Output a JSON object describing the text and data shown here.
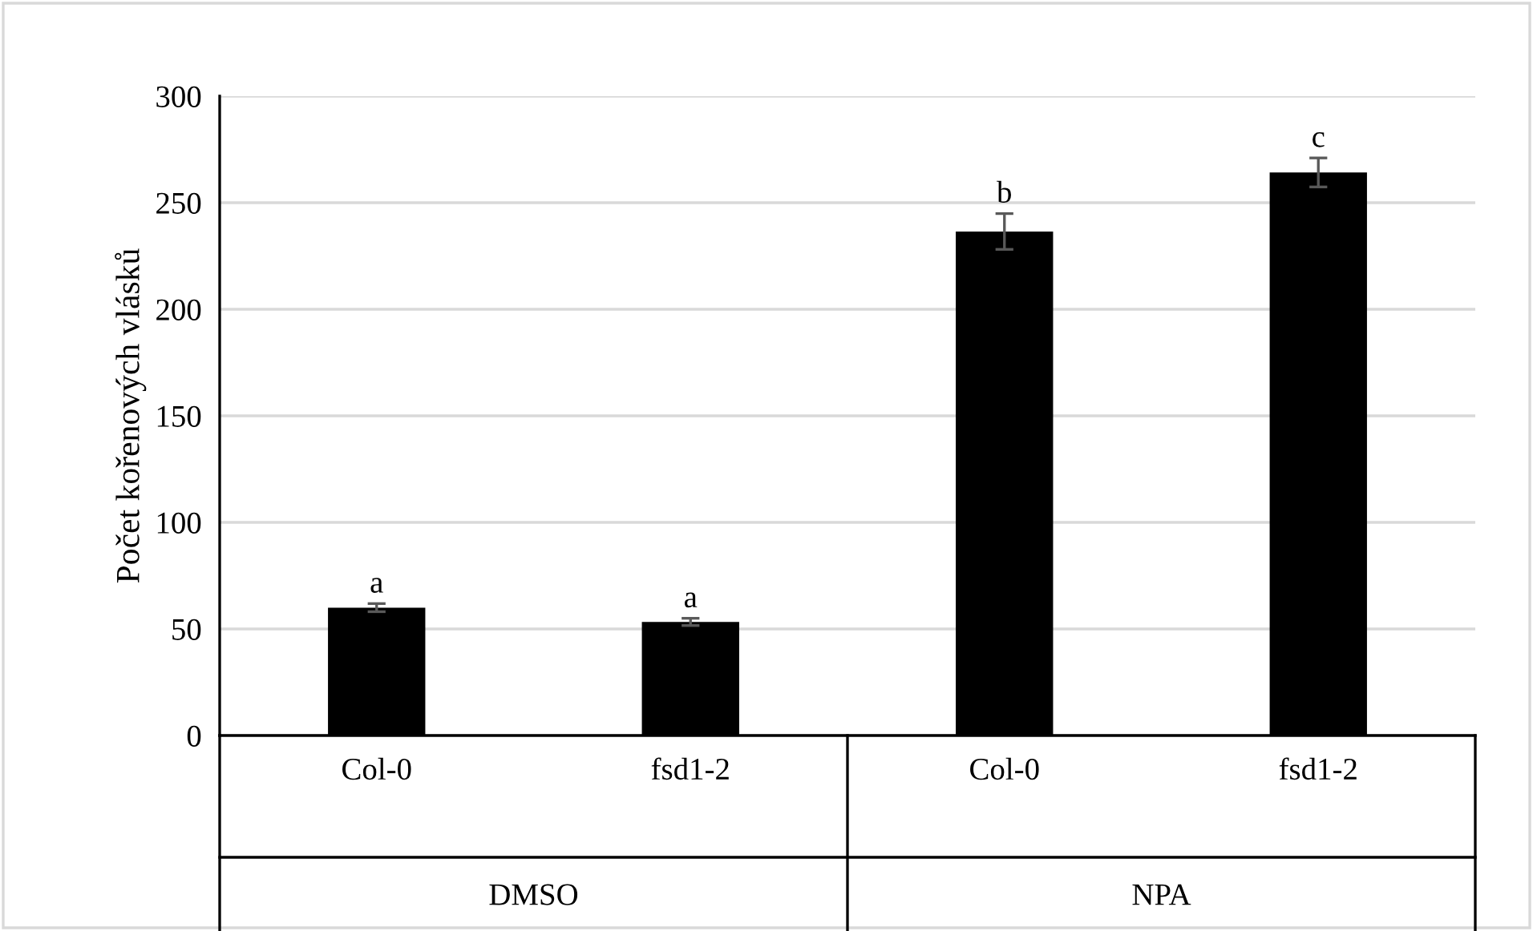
{
  "chart_data": {
    "type": "bar",
    "ylabel": "Počet kořenových vlásků",
    "categories": [
      "Col-0",
      "fsd1-2",
      "Col-0",
      "fsd1-2"
    ],
    "values": [
      60,
      53.3,
      236.5,
      264.2
    ],
    "errors": [
      1.9,
      1.7,
      8.4,
      6.8
    ],
    "color": "#000000",
    "ylim": [
      0,
      300
    ],
    "yticks": [
      0,
      50,
      100,
      150,
      200,
      250,
      300
    ],
    "grid": "y",
    "annotations": [
      "a",
      "a",
      "b",
      "c",
      "DMSO",
      "NPA"
    ]
  }
}
